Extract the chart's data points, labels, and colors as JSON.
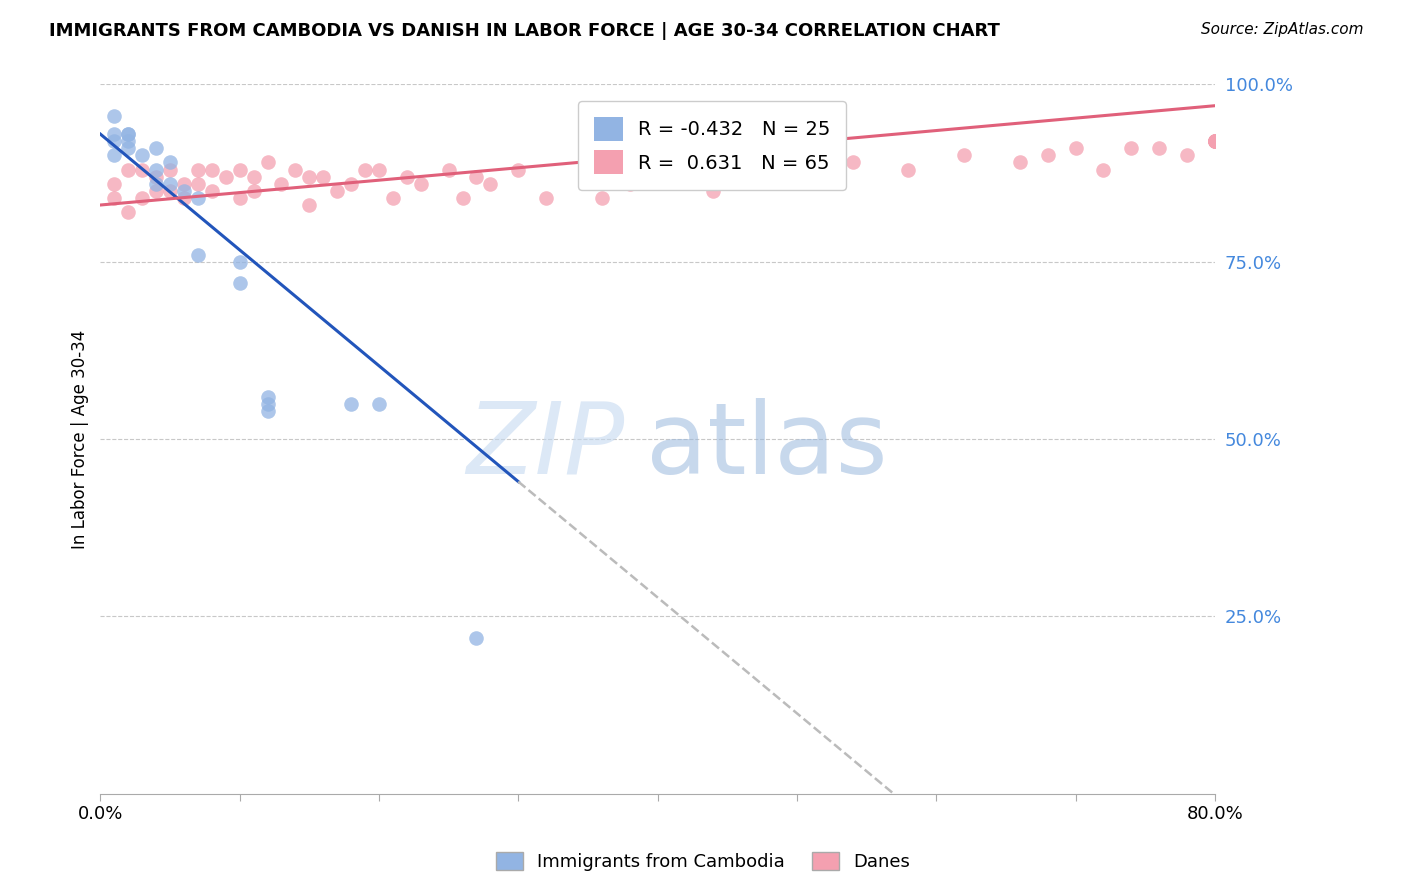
{
  "title": "IMMIGRANTS FROM CAMBODIA VS DANISH IN LABOR FORCE | AGE 30-34 CORRELATION CHART",
  "source": "Source: ZipAtlas.com",
  "ylabel": "In Labor Force | Age 30-34",
  "xlim": [
    0.0,
    0.8
  ],
  "ylim": [
    0.0,
    1.0
  ],
  "yticks_right": [
    0.25,
    0.5,
    0.75,
    1.0
  ],
  "yticklabels_right": [
    "25.0%",
    "50.0%",
    "75.0%",
    "100.0%"
  ],
  "legend_R_cambodia": "-0.432",
  "legend_N_cambodia": "25",
  "legend_R_danes": "0.631",
  "legend_N_danes": "65",
  "color_cambodia": "#92b4e3",
  "color_danes": "#f4a0b0",
  "color_line_cambodia": "#2255bb",
  "color_line_danes": "#e0607a",
  "color_axis_right": "#4488dd",
  "color_grid": "#c8c8c8",
  "bg_color": "#ffffff",
  "cambodia_x": [
    0.01,
    0.01,
    0.01,
    0.01,
    0.02,
    0.02,
    0.02,
    0.02,
    0.03,
    0.04,
    0.04,
    0.04,
    0.05,
    0.05,
    0.06,
    0.07,
    0.07,
    0.1,
    0.1,
    0.12,
    0.12,
    0.12,
    0.18,
    0.2,
    0.27
  ],
  "cambodia_y": [
    0.955,
    0.93,
    0.92,
    0.9,
    0.93,
    0.93,
    0.92,
    0.91,
    0.9,
    0.91,
    0.88,
    0.86,
    0.89,
    0.86,
    0.85,
    0.84,
    0.76,
    0.75,
    0.72,
    0.56,
    0.55,
    0.54,
    0.55,
    0.55,
    0.22
  ],
  "danes_x": [
    0.01,
    0.01,
    0.02,
    0.02,
    0.03,
    0.03,
    0.04,
    0.04,
    0.05,
    0.05,
    0.06,
    0.06,
    0.07,
    0.07,
    0.08,
    0.08,
    0.09,
    0.1,
    0.1,
    0.11,
    0.11,
    0.12,
    0.13,
    0.14,
    0.15,
    0.15,
    0.16,
    0.17,
    0.18,
    0.19,
    0.2,
    0.21,
    0.22,
    0.23,
    0.25,
    0.26,
    0.27,
    0.28,
    0.3,
    0.32,
    0.35,
    0.36,
    0.38,
    0.4,
    0.42,
    0.44,
    0.46,
    0.5,
    0.54,
    0.58,
    0.62,
    0.66,
    0.68,
    0.7,
    0.72,
    0.74,
    0.76,
    0.78,
    0.8,
    0.8,
    0.8,
    0.8,
    0.8,
    0.8,
    0.8
  ],
  "danes_y": [
    0.86,
    0.84,
    0.88,
    0.82,
    0.88,
    0.84,
    0.87,
    0.85,
    0.88,
    0.85,
    0.86,
    0.84,
    0.88,
    0.86,
    0.88,
    0.85,
    0.87,
    0.88,
    0.84,
    0.87,
    0.85,
    0.89,
    0.86,
    0.88,
    0.87,
    0.83,
    0.87,
    0.85,
    0.86,
    0.88,
    0.88,
    0.84,
    0.87,
    0.86,
    0.88,
    0.84,
    0.87,
    0.86,
    0.88,
    0.84,
    0.87,
    0.84,
    0.86,
    0.89,
    0.87,
    0.85,
    0.88,
    0.87,
    0.89,
    0.88,
    0.9,
    0.89,
    0.9,
    0.91,
    0.88,
    0.91,
    0.91,
    0.9,
    0.92,
    0.92,
    0.92,
    0.92,
    0.92,
    0.92,
    0.92
  ],
  "cam_line_x0": 0.0,
  "cam_line_y0": 0.93,
  "cam_line_x1": 0.3,
  "cam_line_y1": 0.44,
  "cam_line_solid_end": 0.3,
  "cam_line_dash_end": 0.8,
  "dan_line_x0": 0.0,
  "dan_line_y0": 0.83,
  "dan_line_x1": 0.8,
  "dan_line_y1": 0.97
}
